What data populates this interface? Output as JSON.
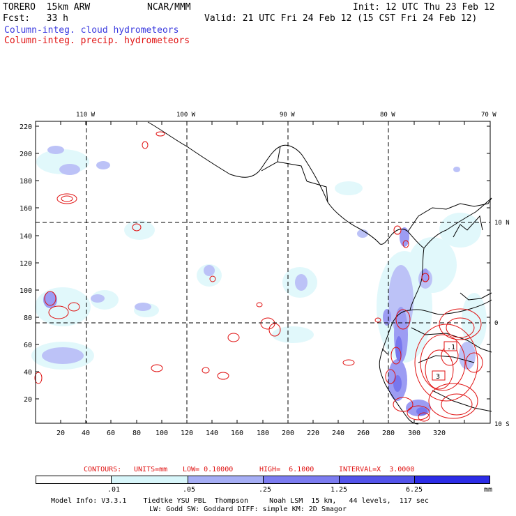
{
  "header": {
    "model": "TORERO  15km ARW",
    "org": "NCAR/MMM",
    "init": "Init: 12 UTC Thu 23 Feb 12",
    "fcst": "Fcst:   33 h",
    "valid": "Valid: 21 UTC Fri 24 Feb 12 (15 CST Fri 24 Feb 12)",
    "field_cloud": "Column-integ. cloud hydrometeors",
    "field_precip": "Column-integ. precip. hydrometeors"
  },
  "map": {
    "lon_labels": [
      "110 W",
      "100 W",
      "90 W",
      "80 W",
      "70 W"
    ],
    "lat_labels": [
      "10 N",
      "0",
      "10 S"
    ],
    "x_ticks": [
      "20",
      "40",
      "60",
      "80",
      "100",
      "120",
      "140",
      "160",
      "180",
      "200",
      "220",
      "240",
      "260",
      "280",
      "300",
      "320"
    ],
    "y_ticks": [
      "220",
      "200",
      "180",
      "160",
      "140",
      "120",
      "100",
      "80",
      "60",
      "40",
      "20"
    ],
    "contour_labels": [
      ".1",
      "3"
    ],
    "colors": {
      "cloud": "#6a6af0",
      "precip": "#e01010",
      "coast": "#000000"
    }
  },
  "contours_line": {
    "label": "CONTOURS:",
    "units": "UNITS=mm",
    "low": "LOW= 0.10000",
    "high": "HIGH=  6.1000",
    "interval": "INTERVAL=X  3.0000"
  },
  "legend": {
    "labels": [
      ".01",
      ".05",
      ".25",
      "1.25",
      "6.25"
    ],
    "unit": "mm",
    "colors": [
      "#ffffff",
      "#d8f6fa",
      "#a6aef5",
      "#7c7cf0",
      "#5353ea",
      "#2c2ce6"
    ]
  },
  "footer": {
    "line1": "Model Info: V3.3.1    Tiedtke YSU PBL  Thompson     Noah LSM  15 km,   44 levels,  117 sec",
    "line2": "LW: Godd SW: Goddard DIFF: simple KM: 2D Smagor"
  }
}
